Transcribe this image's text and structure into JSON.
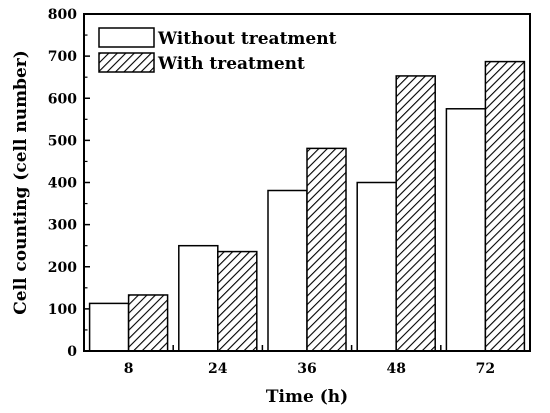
{
  "chart_data": {
    "type": "bar",
    "categories": [
      "8",
      "24",
      "36",
      "48",
      "72"
    ],
    "series": [
      {
        "name": "Without treatment",
        "values": [
          113,
          250,
          381,
          400,
          575
        ],
        "fill": "#ffffff",
        "pattern": "none"
      },
      {
        "name": "With treatment",
        "values": [
          133,
          236,
          481,
          653,
          687
        ],
        "fill": "hatched",
        "pattern": "diagonal"
      }
    ],
    "title": "",
    "xlabel": "Time (h)",
    "ylabel": "Cell counting (cell number)",
    "ylim": [
      0,
      800
    ],
    "yticks": [
      "0",
      "100",
      "200",
      "300",
      "400",
      "500",
      "600",
      "700",
      "800"
    ],
    "grid": false,
    "legend_position": "top-left"
  }
}
